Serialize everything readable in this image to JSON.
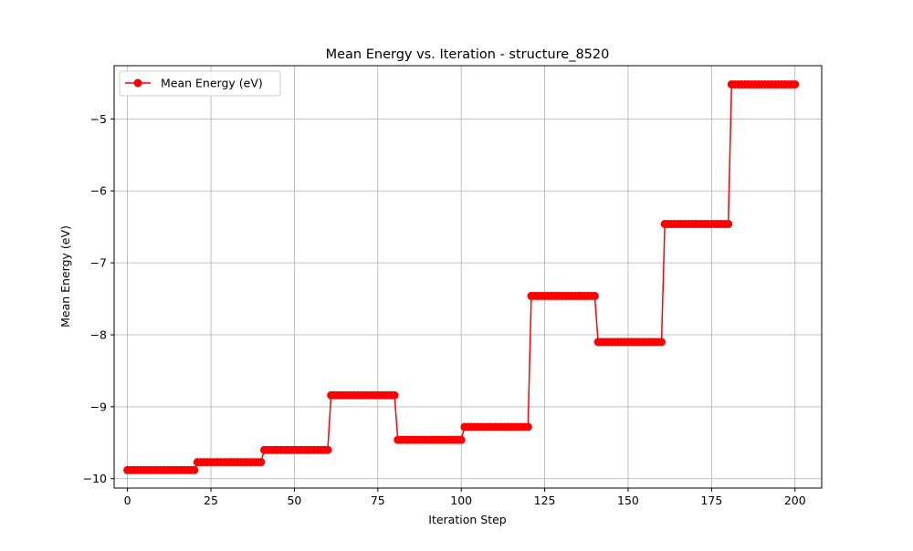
{
  "chart_data": {
    "type": "line",
    "title": "Mean Energy vs. Iteration - structure_8520",
    "xlabel": "Iteration Step",
    "ylabel": "Mean Energy (eV)",
    "xlim": [
      -4,
      208
    ],
    "ylim": [
      -10.13,
      -4.26
    ],
    "xticks": [
      0,
      25,
      50,
      75,
      100,
      125,
      150,
      175,
      200
    ],
    "yticks": [
      -10,
      -9,
      -8,
      -7,
      -6,
      -5
    ],
    "xtick_labels": [
      "0",
      "25",
      "50",
      "75",
      "100",
      "125",
      "150",
      "175",
      "200"
    ],
    "ytick_labels": [
      "−10",
      "−9",
      "−8",
      "−7",
      "−6",
      "−5"
    ],
    "grid": true,
    "legend_position": "top-left",
    "series": [
      {
        "name": "Mean Energy (eV)",
        "color": "#ff0000",
        "marker": "circle",
        "segments": [
          {
            "x_start": 0,
            "x_end": 20,
            "value": -9.88
          },
          {
            "x_start": 21,
            "x_end": 40,
            "value": -9.77
          },
          {
            "x_start": 41,
            "x_end": 60,
            "value": -9.6
          },
          {
            "x_start": 61,
            "x_end": 80,
            "value": -8.84
          },
          {
            "x_start": 81,
            "x_end": 100,
            "value": -9.46
          },
          {
            "x_start": 101,
            "x_end": 120,
            "value": -9.28
          },
          {
            "x_start": 121,
            "x_end": 140,
            "value": -7.46
          },
          {
            "x_start": 141,
            "x_end": 160,
            "value": -8.1
          },
          {
            "x_start": 161,
            "x_end": 180,
            "value": -6.46
          },
          {
            "x_start": 181,
            "x_end": 200,
            "value": -4.52
          }
        ]
      }
    ]
  }
}
